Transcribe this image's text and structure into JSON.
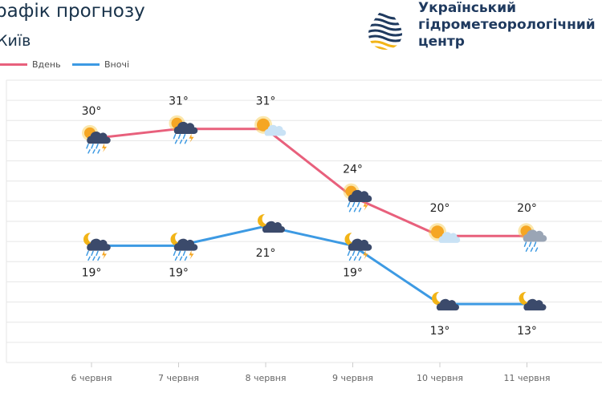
{
  "header": {
    "title": "рафік прогнозу",
    "city": "Київ",
    "org_line1": "Український",
    "org_line2": "гідрометеорологічний",
    "org_line3": "центр"
  },
  "colors": {
    "day": "#e8607c",
    "night": "#3d9ae3"
  },
  "chart_data": {
    "type": "line",
    "categories": [
      "6 червня",
      "7 червня",
      "8 червня",
      "9 червня",
      "10 червня",
      "11 червня"
    ],
    "series": [
      {
        "name": "Вдень",
        "values": [
          30,
          31,
          31,
          24,
          20,
          20
        ],
        "labels": [
          "30°",
          "31°",
          "31°",
          "24°",
          "20°",
          "20°"
        ],
        "icons": [
          "partly-cloudy-storm-icon",
          "partly-cloudy-storm-icon",
          "sun-cloud-icon",
          "partly-cloudy-storm-icon",
          "sun-cloud-icon",
          "sun-cloud-rain-icon"
        ]
      },
      {
        "name": "Вночі",
        "values": [
          19,
          19,
          21,
          19,
          13,
          13
        ],
        "labels": [
          "19°",
          "19°",
          "21°",
          "19°",
          "13°",
          "13°"
        ],
        "icons": [
          "moon-cloud-rain-icon",
          "moon-cloud-rain-icon",
          "moon-cloud-icon",
          "moon-cloud-rain-icon",
          "moon-cloud-icon",
          "moon-cloud-icon"
        ]
      }
    ],
    "ylim": [
      7,
      36
    ],
    "grid": true,
    "legend": "top-left",
    "xlabel": "",
    "ylabel": "",
    "title": ""
  }
}
